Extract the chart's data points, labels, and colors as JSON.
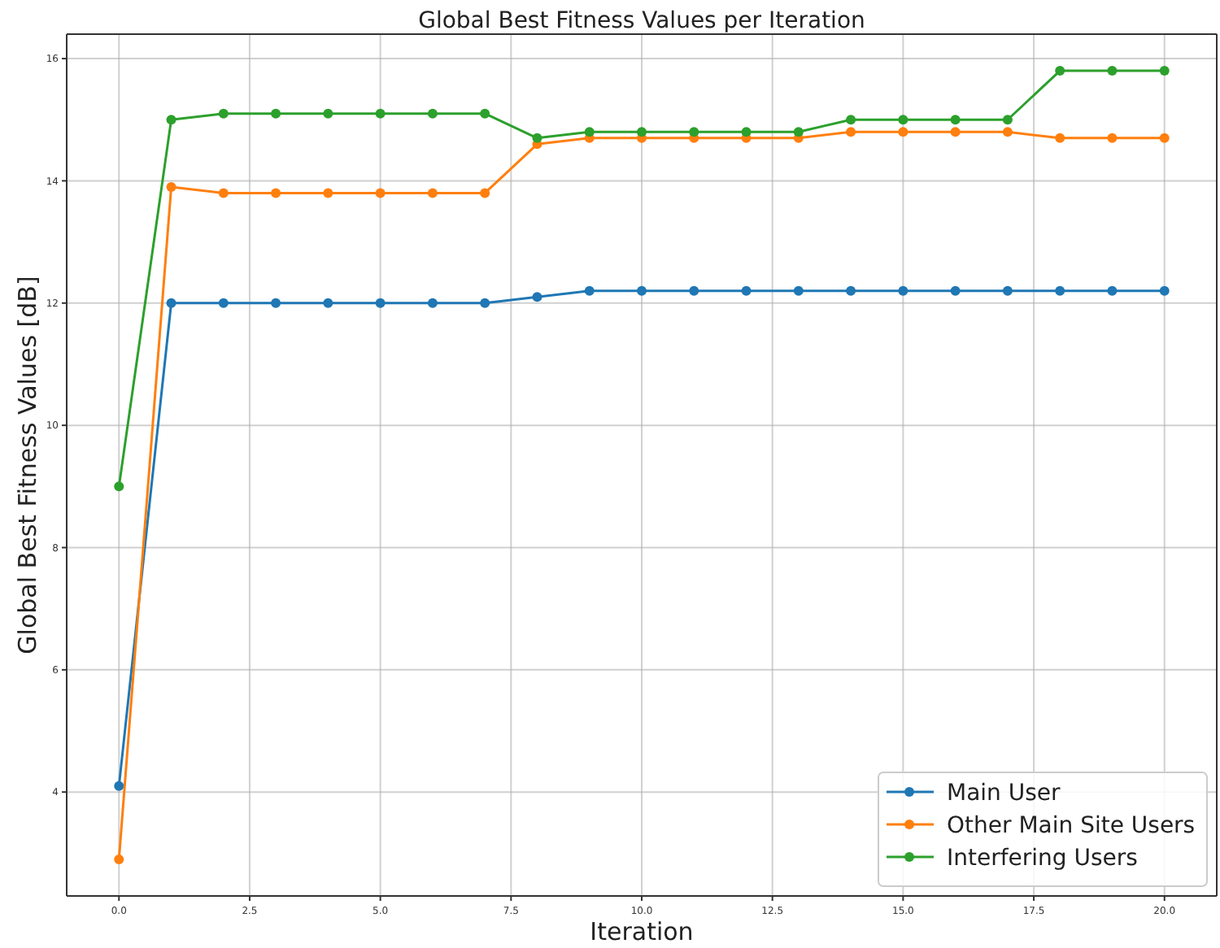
{
  "chart_data": {
    "type": "line",
    "title": "Global Best Fitness Values per Iteration",
    "xlabel": "Iteration",
    "ylabel": "Global Best Fitness Values [dB]",
    "x": [
      0,
      1,
      2,
      3,
      4,
      5,
      6,
      7,
      8,
      9,
      10,
      11,
      12,
      13,
      14,
      15,
      16,
      17,
      18,
      19,
      20
    ],
    "series": [
      {
        "name": "Main User",
        "color": "#1f77b4",
        "values": [
          4.1,
          12,
          12,
          12,
          12,
          12,
          12,
          12,
          12.1,
          12.2,
          12.2,
          12.2,
          12.2,
          12.2,
          12.2,
          12.2,
          12.2,
          12.2,
          12.2,
          12.2,
          12.2
        ]
      },
      {
        "name": "Other Main Site Users",
        "color": "#ff7f0e",
        "values": [
          2.9,
          13.9,
          13.8,
          13.8,
          13.8,
          13.8,
          13.8,
          13.8,
          14.6,
          14.7,
          14.7,
          14.7,
          14.7,
          14.7,
          14.8,
          14.8,
          14.8,
          14.8,
          14.7,
          14.7,
          14.7
        ]
      },
      {
        "name": "Interfering Users",
        "color": "#2ca02c",
        "values": [
          9.0,
          15.0,
          15.1,
          15.1,
          15.1,
          15.1,
          15.1,
          15.1,
          14.7,
          14.8,
          14.8,
          14.8,
          14.8,
          14.8,
          15.0,
          15.0,
          15.0,
          15.0,
          15.8,
          15.8,
          15.8
        ]
      }
    ],
    "xlim": [
      -1,
      21
    ],
    "ylim": [
      2.3,
      16.4
    ],
    "xticks": [
      {
        "value": 0,
        "label": "0.0"
      },
      {
        "value": 2.5,
        "label": "2.5"
      },
      {
        "value": 5,
        "label": "5.0"
      },
      {
        "value": 7.5,
        "label": "7.5"
      },
      {
        "value": 10,
        "label": "10.0"
      },
      {
        "value": 12.5,
        "label": "12.5"
      },
      {
        "value": 15,
        "label": "15.0"
      },
      {
        "value": 17.5,
        "label": "17.5"
      },
      {
        "value": 20,
        "label": "20.0"
      }
    ],
    "yticks": [
      4,
      6,
      8,
      10,
      12,
      14,
      16
    ],
    "grid": true,
    "legend": "bottom right",
    "marker": "circle",
    "line_style": "solid"
  }
}
